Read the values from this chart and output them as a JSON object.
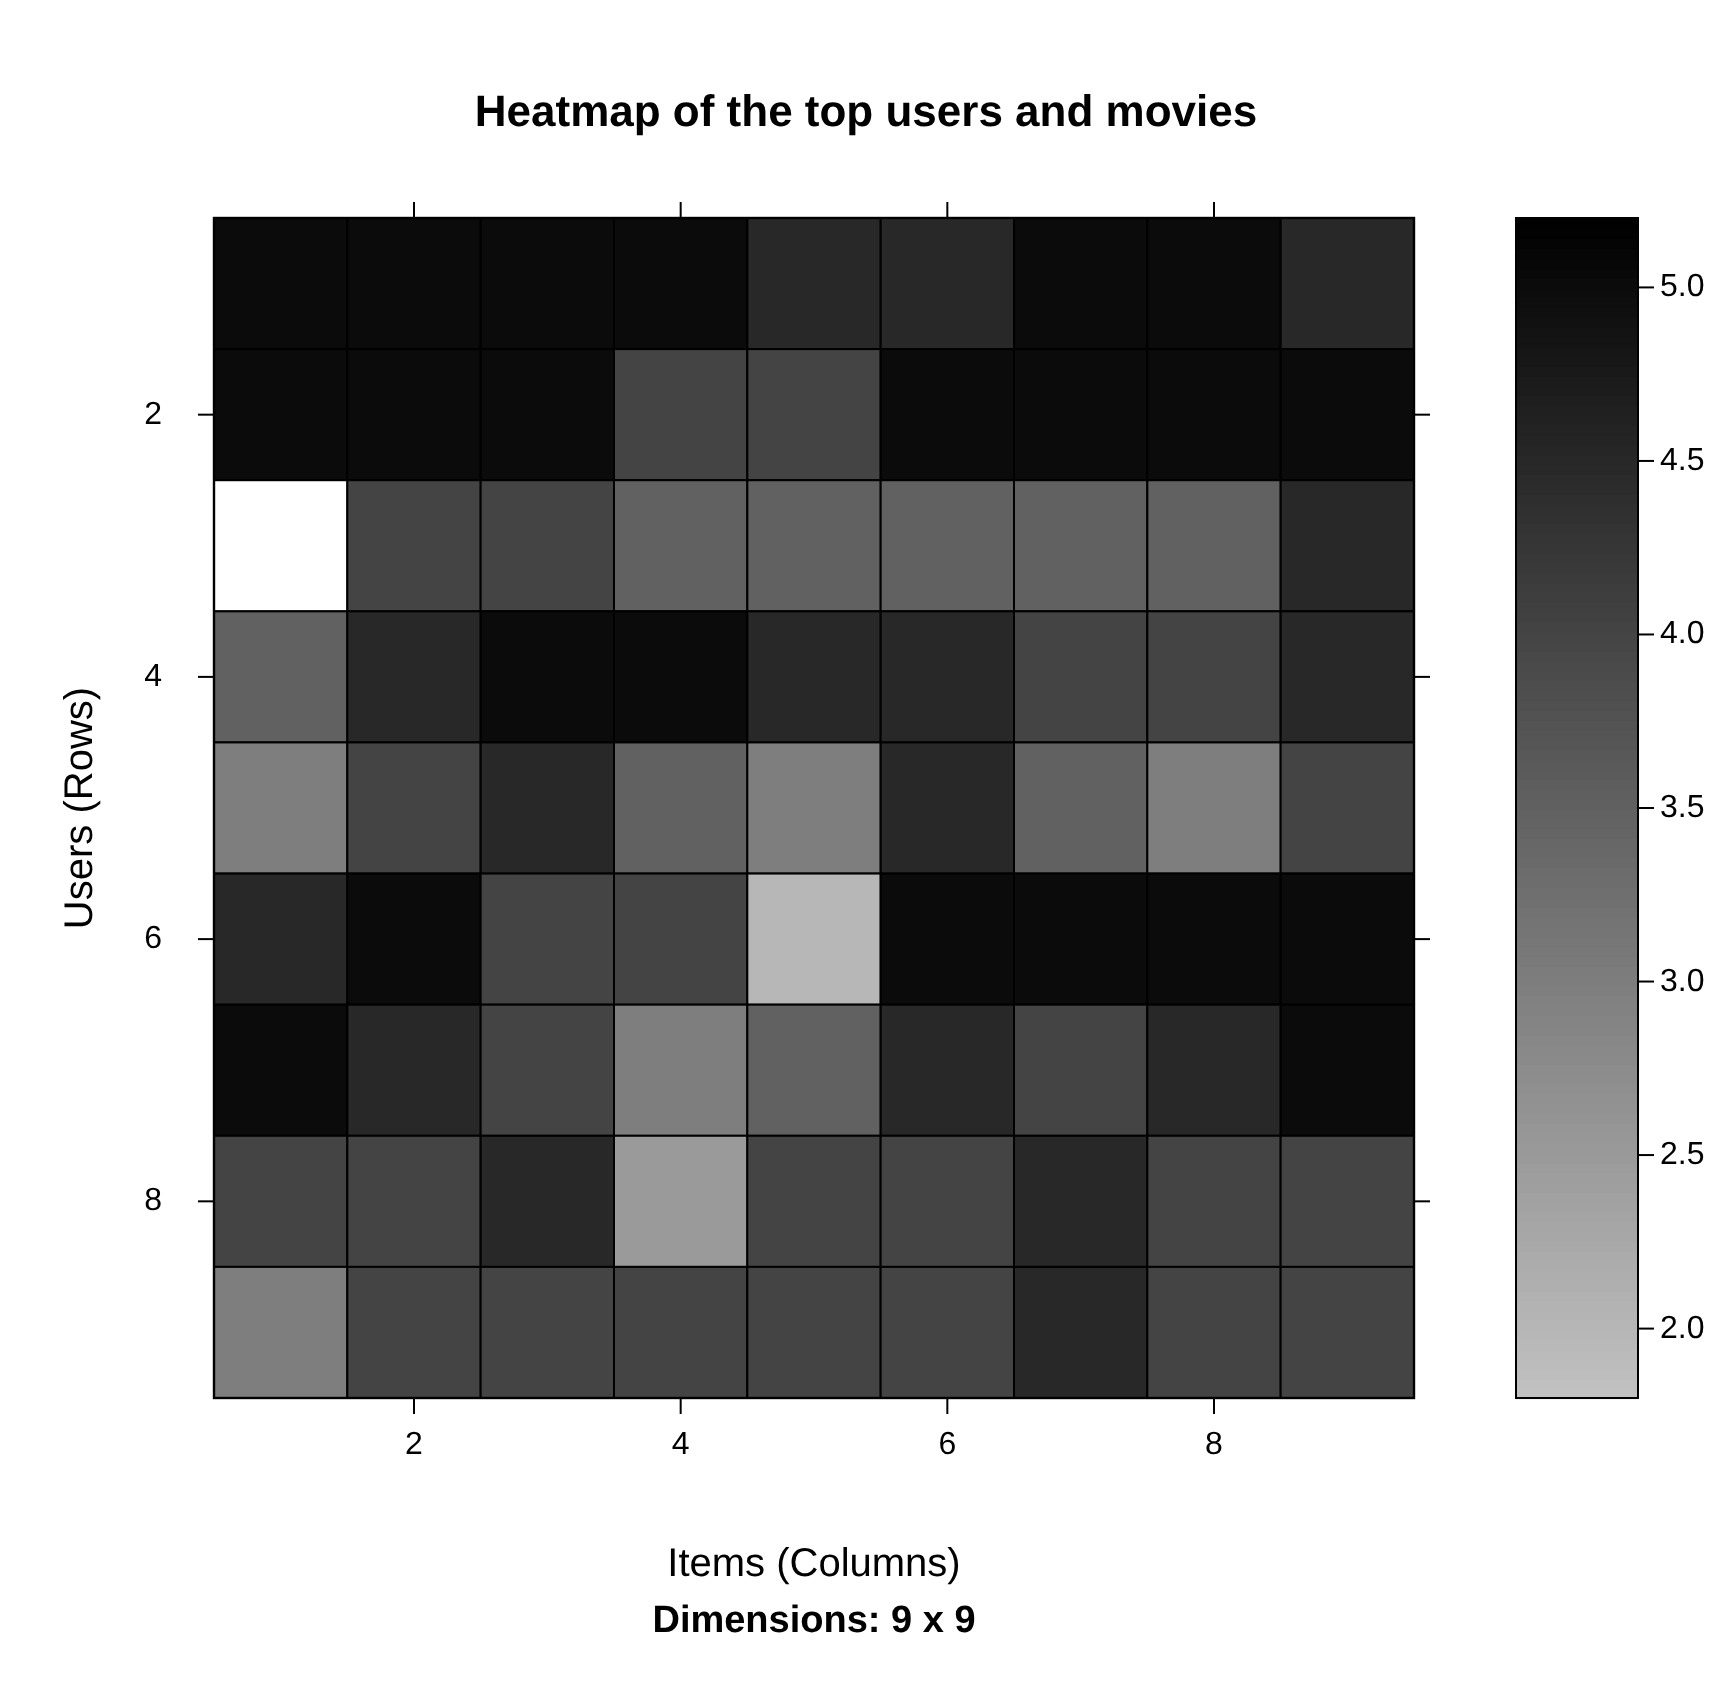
{
  "chart_data": {
    "type": "heatmap",
    "title": "Heatmap of the top users and movies",
    "xlabel": "Items (Columns)",
    "ylabel": "Users (Rows)",
    "annotations": [
      "Dimensions: 9 x 9"
    ],
    "categories": [
      null,
      "2",
      null,
      "4",
      null,
      "6",
      null,
      "8",
      null
    ],
    "y_categories": [
      null,
      "2",
      null,
      "4",
      null,
      "6",
      null,
      "8",
      null
    ],
    "cells": [
      [
        5,
        5,
        5,
        5,
        4.5,
        4.5,
        5,
        5,
        4.5
      ],
      [
        5,
        5,
        5,
        4,
        4,
        5,
        5,
        5,
        5
      ],
      [
        null,
        4,
        4,
        3.5,
        3.5,
        3.5,
        3.5,
        3.5,
        4.5
      ],
      [
        3.5,
        4.5,
        5,
        5,
        4.5,
        4.5,
        4,
        4,
        4.5
      ],
      [
        3,
        4,
        4.5,
        3.5,
        3,
        4.5,
        3.5,
        3,
        4
      ],
      [
        4.5,
        5,
        4,
        4,
        2,
        5,
        5,
        5,
        5
      ],
      [
        5,
        4.5,
        4,
        3,
        3.5,
        4.5,
        4,
        4.5,
        5
      ],
      [
        4,
        4,
        4.5,
        2.5,
        4,
        4,
        4.5,
        4,
        4
      ],
      [
        3,
        4,
        4,
        4,
        4,
        4,
        4.5,
        4,
        4
      ]
    ],
    "clim": [
      1.8,
      5.2
    ],
    "cticks": [
      {
        "value": 2,
        "label": "2.0"
      },
      {
        "value": 2.5,
        "label": "2.5"
      },
      {
        "value": 3,
        "label": "3.0"
      },
      {
        "value": 3.5,
        "label": "3.5"
      },
      {
        "value": 4,
        "label": "4.0"
      },
      {
        "value": 4.5,
        "label": "4.5"
      },
      {
        "value": 5,
        "label": "5.0"
      }
    ]
  }
}
